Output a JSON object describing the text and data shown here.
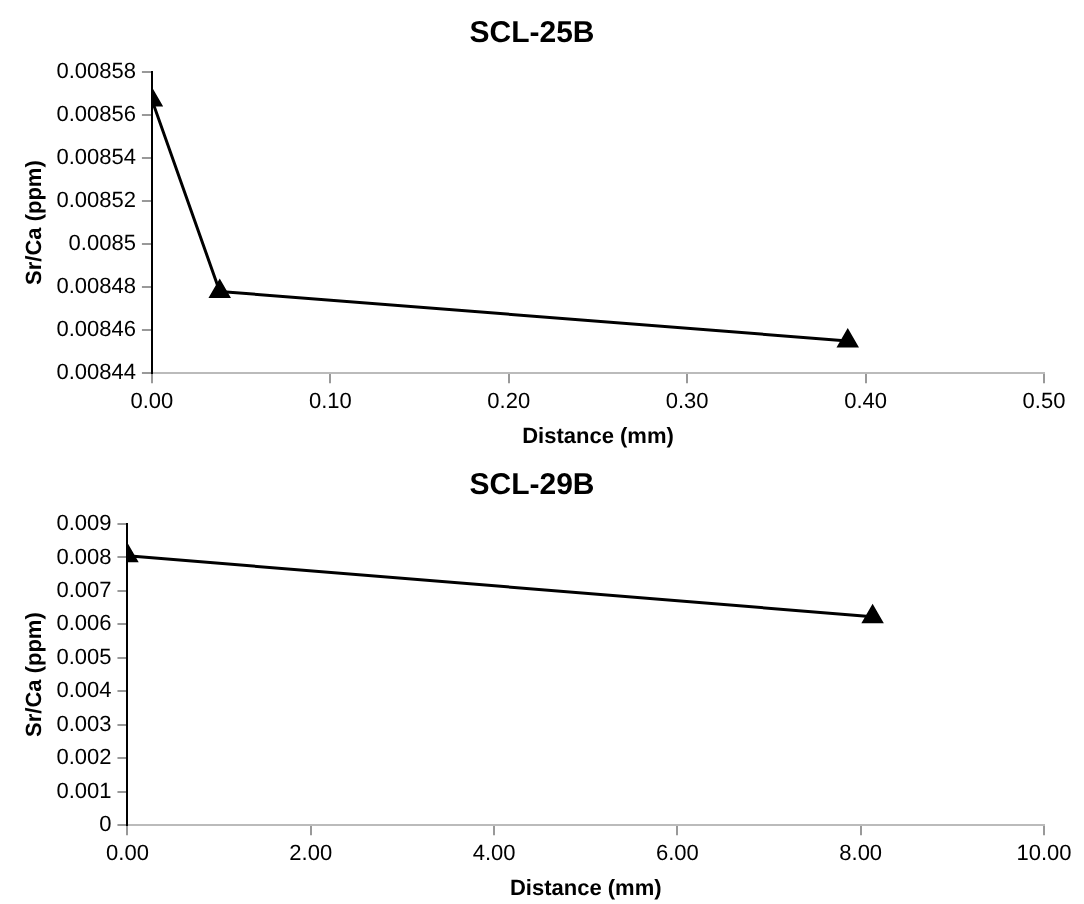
{
  "chart_data": [
    {
      "type": "line",
      "title": "SCL-25B",
      "xlabel": "Distance (mm)",
      "ylabel": "Sr/Ca (ppm)",
      "marker": "triangle",
      "line_style": "solid",
      "grid": false,
      "legend": false,
      "series": [
        {
          "color": "#000000",
          "x": [
            0,
            0.038,
            0.39
          ],
          "values": [
            0.008567,
            0.008478,
            0.008455
          ]
        }
      ],
      "xlim": [
        0,
        0.5
      ],
      "xticks": [
        {
          "value": 0,
          "label": "0.00"
        },
        {
          "value": 0.1,
          "label": "0.10"
        },
        {
          "value": 0.2,
          "label": "0.20"
        },
        {
          "value": 0.3,
          "label": "0.30"
        },
        {
          "value": 0.4,
          "label": "0.40"
        },
        {
          "value": 0.5,
          "label": "0.50"
        }
      ],
      "ylim": [
        0.00844,
        0.00858
      ],
      "yticks": [
        0.00844,
        0.00846,
        0.00848,
        0.0085,
        0.00852,
        0.00854,
        0.00856,
        0.00858
      ]
    },
    {
      "type": "line",
      "title": "SCL-29B",
      "xlabel": "Distance (mm)",
      "ylabel": "Sr/Ca (ppm)",
      "marker": "triangle",
      "line_style": "solid",
      "grid": false,
      "legend": false,
      "series": [
        {
          "color": "#000000",
          "x": [
            0,
            8.13
          ],
          "values": [
            0.00805,
            0.00623
          ]
        }
      ],
      "xlim": [
        0,
        10
      ],
      "xticks": [
        {
          "value": 0,
          "label": "0.00"
        },
        {
          "value": 2,
          "label": "2.00"
        },
        {
          "value": 4,
          "label": "4.00"
        },
        {
          "value": 6,
          "label": "6.00"
        },
        {
          "value": 8,
          "label": "8.00"
        },
        {
          "value": 10,
          "label": "10.00"
        }
      ],
      "ylim": [
        0,
        0.009
      ],
      "yticks": [
        0,
        0.001,
        0.002,
        0.003,
        0.004,
        0.005,
        0.006,
        0.007,
        0.008,
        0.009
      ]
    }
  ]
}
